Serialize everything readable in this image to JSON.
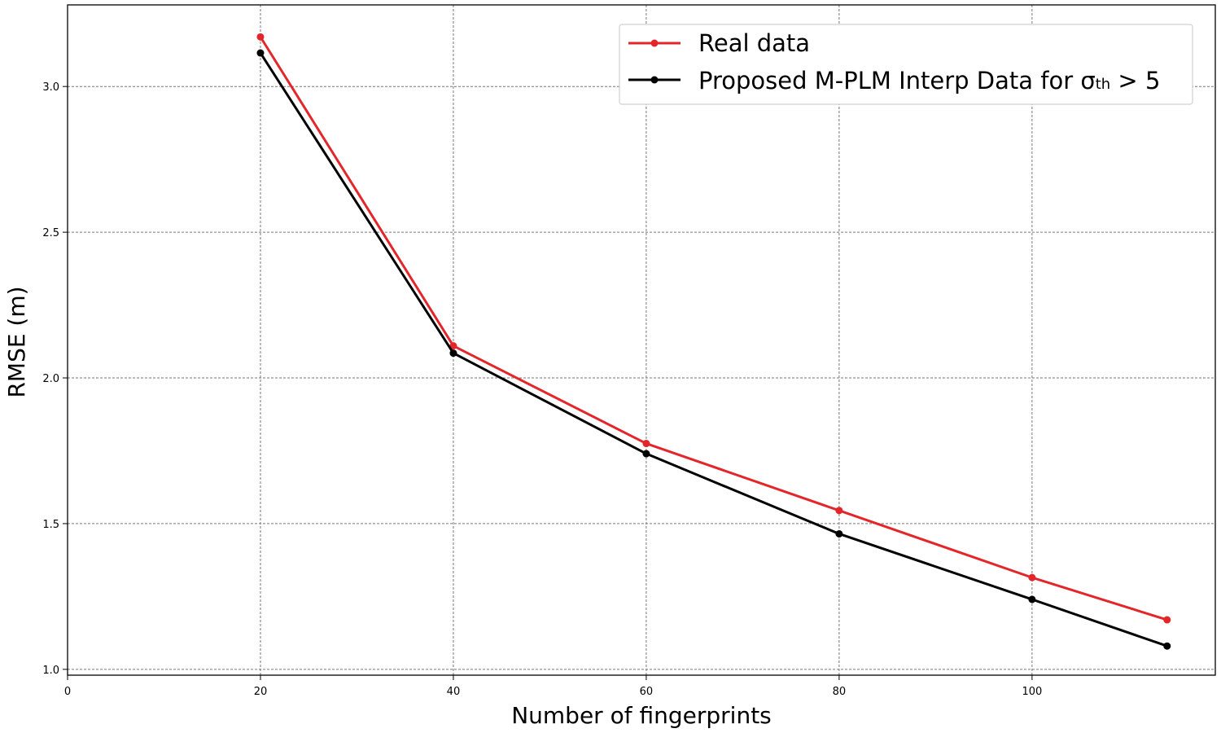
{
  "chart_data": {
    "type": "line",
    "title": "",
    "xlabel": "Number of fingerprints",
    "ylabel": "RMSE (m)",
    "xlim": [
      0,
      119
    ],
    "ylim": [
      0.98,
      3.28
    ],
    "grid": true,
    "legend_position": "top-right",
    "x_ticks": [
      0,
      20,
      40,
      60,
      80,
      100
    ],
    "x_tick_labels": [
      "0",
      "20",
      "40",
      "60",
      "80",
      "100"
    ],
    "y_ticks": [
      1.0,
      1.5,
      2.0,
      2.5,
      3.0
    ],
    "y_tick_labels": [
      "1.0",
      "1.5",
      "2.0",
      "2.5",
      "3.0"
    ],
    "x": [
      20,
      40,
      60,
      80,
      100,
      114
    ],
    "series": [
      {
        "name": "Real data",
        "color": "#e3262a",
        "values": [
          3.17,
          2.11,
          1.775,
          1.545,
          1.315,
          1.17
        ]
      },
      {
        "name": "Proposed M-PLM Interp Data for σth > 5",
        "legend_main": "Proposed M-PLM Interp Data for σ",
        "legend_sub": "th",
        "legend_tail": " > 5",
        "color": "#000000",
        "values": [
          3.115,
          2.085,
          1.74,
          1.465,
          1.24,
          1.08
        ]
      }
    ]
  }
}
